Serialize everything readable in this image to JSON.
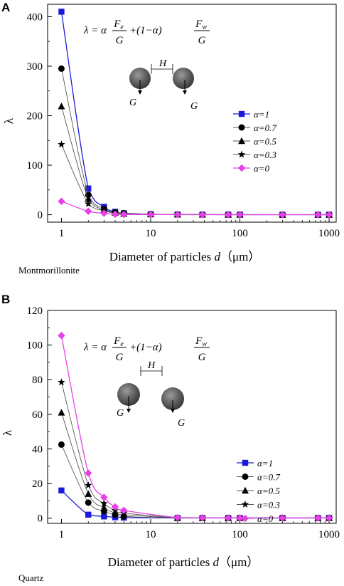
{
  "chart_data": [
    {
      "type": "line",
      "panel": "A",
      "title": "",
      "xlabel": "Diameter of particles d（μm）",
      "xlabel_main": "Diameter of particles ",
      "xlabel_var": "d",
      "xlabel_unit": "（μm）",
      "ylabel": "λ",
      "mineral_label": "Montmorillonite",
      "x_scale": "log",
      "xlim": [
        0.7,
        1200
      ],
      "ylim": [
        -15,
        425
      ],
      "xticks": [
        "1",
        "10",
        "100",
        "1000"
      ],
      "yticks": [
        "0",
        "100",
        "200",
        "300",
        "400"
      ],
      "ytick_values": [
        0,
        100,
        200,
        300,
        400
      ],
      "x": [
        1,
        2,
        3,
        4,
        5,
        10,
        20,
        38,
        74,
        100,
        300,
        750,
        1000
      ],
      "series": [
        {
          "name": "α=1",
          "marker": "square",
          "color": "#1a1adb",
          "values": [
            410,
            53,
            16,
            6,
            3,
            1,
            0.5,
            0.3,
            0.2,
            0.2,
            0.1,
            0.1,
            0.1
          ]
        },
        {
          "name": "α=0.7",
          "marker": "circle",
          "color": "#000000",
          "values": [
            295,
            40,
            12,
            5,
            3,
            1,
            0.5,
            0.3,
            0.2,
            0.2,
            0.1,
            0.1,
            0.1
          ]
        },
        {
          "name": "α=0.5",
          "marker": "triangle",
          "color": "#000000",
          "values": [
            219,
            32,
            10,
            4,
            2,
            1,
            0.5,
            0.3,
            0.2,
            0.2,
            0.1,
            0.1,
            0.1
          ]
        },
        {
          "name": "α=0.3",
          "marker": "star",
          "color": "#000000",
          "values": [
            142,
            22,
            8,
            3,
            2,
            1,
            0.5,
            0.3,
            0.2,
            0.2,
            0.1,
            0.1,
            0.1
          ]
        },
        {
          "name": "α=0",
          "marker": "diamond",
          "color": "#e640e6",
          "values": [
            27,
            7,
            3,
            1,
            0.5,
            0.3,
            0.2,
            0.1,
            0.1,
            0.1,
            0.1,
            0.1,
            0.1
          ]
        }
      ],
      "legend": "right",
      "inset": {
        "formula_lhs": "λ = α",
        "num1": "F",
        "sub1": "e",
        "den1": "G",
        "mid": "+(1−α)",
        "num2": "F",
        "sub2": "w",
        "den2": "G",
        "spacing_label": "H",
        "force_left": "G",
        "force_right": "G"
      }
    },
    {
      "type": "line",
      "panel": "B",
      "title": "",
      "xlabel": "Diameter of particles d（μm）",
      "xlabel_main": "Diameter of particles ",
      "xlabel_var": "d",
      "xlabel_unit": "（μm）",
      "ylabel": "λ",
      "mineral_label": "Quartz",
      "x_scale": "log",
      "xlim": [
        0.7,
        1200
      ],
      "ylim": [
        -3,
        120
      ],
      "xticks": [
        "1",
        "10",
        "100",
        "1000"
      ],
      "yticks": [
        "0",
        "20",
        "40",
        "60",
        "80",
        "100",
        "120"
      ],
      "ytick_values": [
        0,
        20,
        40,
        60,
        80,
        100,
        120
      ],
      "x": [
        1,
        2,
        3,
        4,
        5,
        20,
        38,
        74,
        100,
        300,
        750,
        1000
      ],
      "series": [
        {
          "name": "α=1",
          "marker": "square",
          "color": "#1a1adb",
          "values": [
            16,
            2,
            1,
            0.5,
            0.3,
            0.1,
            0.1,
            0.1,
            0.1,
            0.1,
            0.1,
            0.1
          ]
        },
        {
          "name": "α=0.7",
          "marker": "circle",
          "color": "#000000",
          "values": [
            42.5,
            9,
            4,
            2,
            1,
            0.1,
            0.1,
            0.1,
            0.1,
            0.1,
            0.1,
            0.1
          ]
        },
        {
          "name": "α=0.5",
          "marker": "triangle",
          "color": "#000000",
          "values": [
            61,
            14,
            6,
            3,
            2,
            0.1,
            0.1,
            0.1,
            0.1,
            0.1,
            0.1,
            0.1
          ]
        },
        {
          "name": "α=0.3",
          "marker": "star",
          "color": "#000000",
          "values": [
            78.5,
            19,
            8.5,
            4.5,
            3,
            0.2,
            0.1,
            0.1,
            0.1,
            0.1,
            0.1,
            0.1
          ]
        },
        {
          "name": "α=0",
          "marker": "diamond",
          "color": "#e640e6",
          "values": [
            105.5,
            26,
            12,
            6.5,
            4.5,
            0.3,
            0.2,
            0.1,
            0.1,
            0.1,
            0.1,
            0.1
          ]
        }
      ],
      "legend": "right",
      "inset": {
        "formula_lhs": "λ = α",
        "num1": "F",
        "sub1": "e",
        "den1": "G",
        "mid": "+(1−α)",
        "num2": "F",
        "sub2": "w",
        "den2": "G",
        "spacing_label": "H",
        "force_left": "G",
        "force_right": "G"
      }
    }
  ]
}
